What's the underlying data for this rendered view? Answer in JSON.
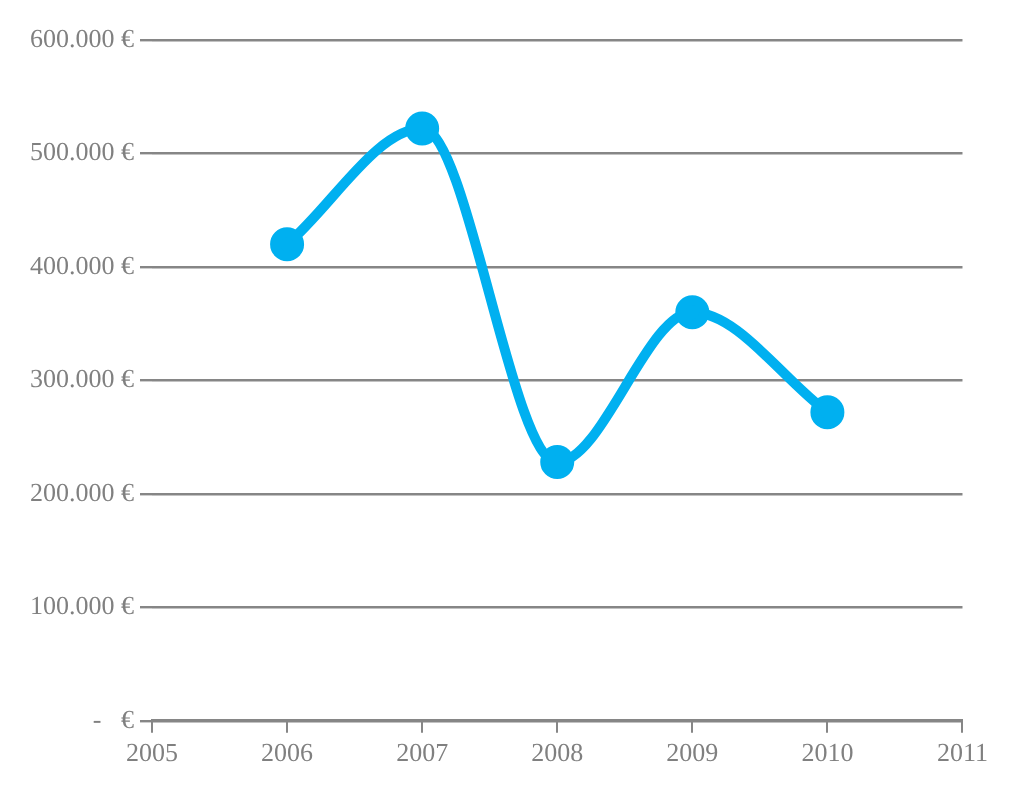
{
  "chart_data": {
    "type": "line",
    "x": [
      2006,
      2007,
      2008,
      2009,
      2010
    ],
    "series": [
      {
        "color": "#00b0f0",
        "values": [
          420000,
          522000,
          228000,
          360000,
          272000
        ]
      }
    ],
    "xlim": [
      2005,
      2011
    ],
    "xticks": [
      2005,
      2006,
      2007,
      2008,
      2009,
      2010,
      2011
    ],
    "ylim": [
      0,
      600000
    ],
    "yticks": [
      {
        "value": 0,
        "label": "-   €"
      },
      {
        "value": 100000,
        "label": "100.000 €"
      },
      {
        "value": 200000,
        "label": "200.000 €"
      },
      {
        "value": 300000,
        "label": "300.000 €"
      },
      {
        "value": 400000,
        "label": "400.000 €"
      },
      {
        "value": 500000,
        "label": "500.000 €"
      },
      {
        "value": 600000,
        "label": "600.000 €"
      }
    ],
    "grid": "y",
    "legend": false,
    "marker": "circle",
    "line_style": "solid"
  }
}
